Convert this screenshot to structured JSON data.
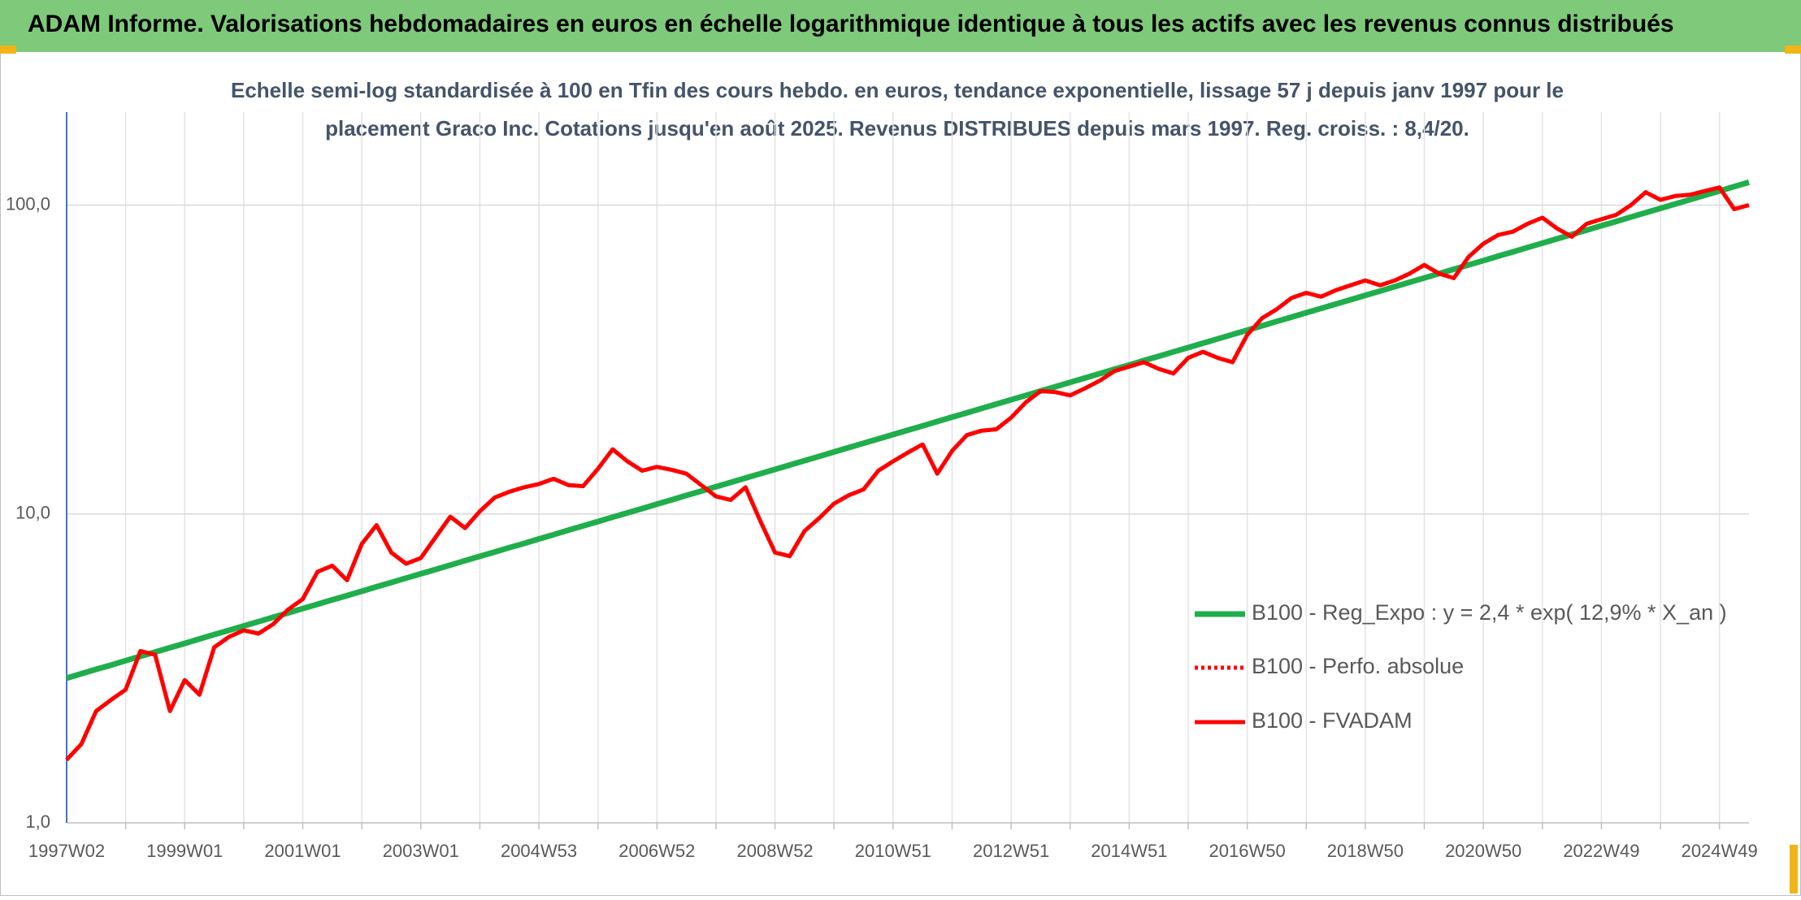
{
  "chart_data": {
    "type": "line",
    "title": "ADAM Informe. Valorisations hebdomadaires en euros en échelle logarithmique identique à tous les actifs avec les revenus connus distribués",
    "subtitle": [
      "Echelle semi-log standardisée à 100 en Tfin des cours hebdo. en euros, tendance exponentielle, lissage 57 j depuis janv 1997 pour le",
      "placement Graco Inc. Cotations jusqu'en août 2025. Revenus DISTRIBUES depuis mars 1997. Reg. croiss. : 8,4/20."
    ],
    "yscale": "log",
    "ylim": [
      1,
      200
    ],
    "yticks": [
      {
        "value": 1,
        "label": "1,0"
      },
      {
        "value": 10,
        "label": "10,0"
      },
      {
        "value": 100,
        "label": "100,0"
      }
    ],
    "grid": true,
    "legend": "right",
    "categories": [
      "1997W02",
      null,
      null,
      null,
      null,
      null,
      null,
      null,
      "1999W01",
      null,
      null,
      null,
      null,
      null,
      null,
      null,
      "2001W01",
      null,
      null,
      null,
      null,
      null,
      null,
      null,
      "2003W01",
      null,
      null,
      null,
      null,
      null,
      null,
      null,
      "2004W53",
      null,
      null,
      null,
      null,
      null,
      null,
      null,
      "2006W52",
      null,
      null,
      null,
      null,
      null,
      null,
      null,
      "2008W52",
      null,
      null,
      null,
      null,
      null,
      null,
      null,
      "2010W51",
      null,
      null,
      null,
      null,
      null,
      null,
      null,
      "2012W51",
      null,
      null,
      null,
      null,
      null,
      null,
      null,
      "2014W51",
      null,
      null,
      null,
      null,
      null,
      null,
      null,
      "2016W50",
      null,
      null,
      null,
      null,
      null,
      null,
      null,
      "2018W50",
      null,
      null,
      null,
      null,
      null,
      null,
      null,
      "2020W50",
      null,
      null,
      null,
      null,
      null,
      null,
      null,
      "2022W49",
      null,
      null,
      null,
      null,
      null,
      null,
      null,
      "2024W49",
      null,
      null
    ],
    "series": [
      {
        "name": "B100 - Reg_Expo : y = 2,4 * exp( 12,9% *  X_an )",
        "color": "#1fae4b",
        "style": "solid",
        "values": [
          2.94,
          3.04,
          3.14,
          3.24,
          3.35,
          3.46,
          3.57,
          3.69,
          3.81,
          3.94,
          4.07,
          4.2,
          4.34,
          4.48,
          4.63,
          4.78,
          4.94,
          5.1,
          5.27,
          5.44,
          5.62,
          5.81,
          6.0,
          6.2,
          6.4,
          6.61,
          6.83,
          7.06,
          7.29,
          7.53,
          7.78,
          8.03,
          8.3,
          8.57,
          8.86,
          9.15,
          9.45,
          9.76,
          10.08,
          10.41,
          10.76,
          11.11,
          11.48,
          11.86,
          12.25,
          12.65,
          13.07,
          13.5,
          13.94,
          14.4,
          14.88,
          15.37,
          15.88,
          16.4,
          16.94,
          17.49,
          18.07,
          18.67,
          19.28,
          19.92,
          20.58,
          21.25,
          21.96,
          22.68,
          23.43,
          24.2,
          25.0,
          25.82,
          26.67,
          27.55,
          28.46,
          29.4,
          30.37,
          31.37,
          32.4,
          33.47,
          34.57,
          35.71,
          36.89,
          38.1,
          39.36,
          40.66,
          42.0,
          43.38,
          44.81,
          46.29,
          47.82,
          49.39,
          51.02,
          52.7,
          54.44,
          56.23,
          58.09,
          60.0,
          61.98,
          64.02,
          66.13,
          68.31,
          70.56,
          72.89,
          75.29,
          77.77,
          80.34,
          82.99,
          85.72,
          88.55,
          91.47,
          94.48,
          97.59,
          100.81,
          104.13,
          107.56,
          111.11,
          114.77,
          118.55
        ]
      },
      {
        "name": "B100 - Perfo. absolue",
        "color": "#ff0000",
        "style": "dotted",
        "values": [
          1.6,
          1.8,
          2.3,
          2.5,
          2.7,
          3.6,
          3.5,
          2.3,
          2.9,
          2.6,
          3.7,
          4.0,
          4.2,
          4.1,
          4.4,
          4.9,
          5.3,
          6.5,
          6.8,
          6.1,
          8.0,
          9.2,
          7.5,
          6.9,
          7.2,
          8.4,
          9.8,
          9.0,
          10.2,
          11.3,
          11.8,
          12.2,
          12.5,
          13.0,
          12.4,
          12.3,
          14.0,
          16.2,
          14.8,
          13.8,
          14.2,
          13.9,
          13.5,
          12.4,
          11.4,
          11.1,
          12.2,
          9.5,
          7.5,
          7.3,
          8.8,
          9.7,
          10.8,
          11.5,
          12.0,
          13.8,
          14.8,
          15.8,
          16.8,
          13.5,
          16.0,
          18.0,
          18.6,
          18.8,
          20.5,
          23.0,
          25.0,
          24.8,
          24.2,
          25.5,
          27.0,
          29.0,
          30.0,
          31.0,
          29.5,
          28.5,
          32.0,
          33.5,
          32.0,
          31.0,
          38.0,
          43.0,
          46.0,
          50.0,
          52.0,
          50.5,
          53.0,
          55.0,
          57.0,
          55.0,
          57.0,
          60.0,
          64.0,
          60.0,
          58.0,
          68.0,
          75.0,
          80.0,
          82.0,
          87.0,
          91.0,
          84.0,
          79.0,
          87.0,
          90.0,
          93.0,
          100.0,
          110.0,
          104.0,
          107.0,
          108.0,
          111.0,
          114.0,
          97.0,
          100.0
        ]
      },
      {
        "name": "B100 - FVADAM",
        "color": "#ff0000",
        "style": "solid",
        "values": [
          1.6,
          1.8,
          2.3,
          2.5,
          2.7,
          3.6,
          3.5,
          2.3,
          2.9,
          2.6,
          3.7,
          4.0,
          4.2,
          4.1,
          4.4,
          4.9,
          5.3,
          6.5,
          6.8,
          6.1,
          8.0,
          9.2,
          7.5,
          6.9,
          7.2,
          8.4,
          9.8,
          9.0,
          10.2,
          11.3,
          11.8,
          12.2,
          12.5,
          13.0,
          12.4,
          12.3,
          14.0,
          16.2,
          14.8,
          13.8,
          14.2,
          13.9,
          13.5,
          12.4,
          11.4,
          11.1,
          12.2,
          9.5,
          7.5,
          7.3,
          8.8,
          9.7,
          10.8,
          11.5,
          12.0,
          13.8,
          14.8,
          15.8,
          16.8,
          13.5,
          16.0,
          18.0,
          18.6,
          18.8,
          20.5,
          23.0,
          25.0,
          24.8,
          24.2,
          25.5,
          27.0,
          29.0,
          30.0,
          31.0,
          29.5,
          28.5,
          32.0,
          33.5,
          32.0,
          31.0,
          38.0,
          43.0,
          46.0,
          50.0,
          52.0,
          50.5,
          53.0,
          55.0,
          57.0,
          55.0,
          57.0,
          60.0,
          64.0,
          60.0,
          58.0,
          68.0,
          75.0,
          80.0,
          82.0,
          87.0,
          91.0,
          84.0,
          79.0,
          87.0,
          90.0,
          93.0,
          100.0,
          110.0,
          104.0,
          107.0,
          108.0,
          111.0,
          114.0,
          97.0,
          100.0
        ]
      }
    ]
  }
}
